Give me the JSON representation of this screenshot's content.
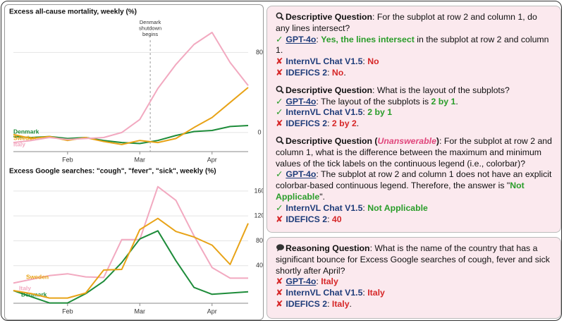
{
  "chart_data": [
    {
      "type": "line",
      "title": "Excess all-cause mortality, weekly (%)",
      "categories": [
        null,
        null,
        null,
        "Feb",
        null,
        null,
        null,
        "Mar",
        null,
        null,
        null,
        "Apr",
        null,
        null
      ],
      "series": [
        {
          "name": "Denmark",
          "color": "#1e8c3a",
          "values": [
            -4,
            -5,
            -4,
            -6,
            -5,
            -8,
            -10,
            -11,
            -8,
            -3,
            1,
            2,
            6,
            7
          ]
        },
        {
          "name": "Sweden",
          "color": "#e8a317",
          "values": [
            -2,
            -6,
            -4,
            -8,
            -5,
            -9,
            -12,
            -8,
            -10,
            -6,
            5,
            15,
            30,
            45
          ]
        },
        {
          "name": "Italy",
          "color": "#f2a9c0",
          "values": [
            -10,
            -8,
            -5,
            -7,
            -6,
            -5,
            0,
            13,
            44,
            68,
            88,
            100,
            70,
            47
          ]
        }
      ],
      "ylim": [
        -17,
        112
      ],
      "yticks": [
        0,
        80
      ],
      "grid": true,
      "annotation": [
        "Denmark",
        "shutdown",
        "begins"
      ]
    },
    {
      "type": "line",
      "title": "Excess Google searches: \"cough\", \"fever\", \"sick\", weekly (%)",
      "categories": [
        null,
        null,
        null,
        "Feb",
        null,
        null,
        null,
        "Mar",
        null,
        null,
        null,
        "Apr",
        null,
        null
      ],
      "series": [
        {
          "name": "Italy",
          "color": "#f2a9c0",
          "values": [
            12,
            18,
            24,
            27,
            22,
            21,
            82,
            82,
            167,
            145,
            88,
            37,
            20,
            20
          ]
        },
        {
          "name": "Denmark",
          "color": "#1e8c3a",
          "values": [
            0,
            -10,
            -20,
            -20,
            -5,
            15,
            45,
            83,
            96,
            48,
            5,
            -6,
            -4,
            -2
          ]
        },
        {
          "name": "Sweden",
          "color": "#e8a317",
          "values": [
            0,
            -5,
            -12,
            -12,
            -4,
            33,
            34,
            98,
            116,
            95,
            86,
            73,
            42,
            108
          ]
        }
      ],
      "ylim": [
        -17,
        178
      ],
      "yticks": [
        40,
        80,
        120,
        160
      ],
      "grid": true
    }
  ],
  "panels": [
    {
      "icon": "search",
      "items": [
        {
          "question": [
            {
              "text": "Descriptive Question",
              "bold": true
            },
            {
              "text": ": For the subplot at row 2 and column 1, do any lines intersect?"
            }
          ],
          "answers": [
            {
              "verdict": "✓",
              "model": "GPT-4o",
              "underline": true,
              "answer": [
                {
                  "text": ": "
                },
                {
                  "text": "Yes, the lines intersect",
                  "color": "#2a9d2a"
                },
                {
                  "text": " in the subplot at row 2 and column 1."
                }
              ]
            },
            {
              "verdict": "✘",
              "model": "InternVL Chat V1.5",
              "answer": [
                {
                  "text": ": "
                },
                {
                  "text": "No",
                  "color": "#d62728"
                }
              ]
            },
            {
              "verdict": "✘",
              "model": "IDEFICS 2",
              "answer": [
                {
                  "text": ": "
                },
                {
                  "text": "No",
                  "color": "#d62728"
                },
                {
                  "text": "."
                }
              ]
            }
          ]
        },
        {
          "question": [
            {
              "text": "Descriptive Question",
              "bold": true
            },
            {
              "text": ": What is the layout of the subplots?"
            }
          ],
          "answers": [
            {
              "verdict": "✓",
              "model": "GPT-4o",
              "underline": true,
              "answer": [
                {
                  "text": ": The layout of the subplots is "
                },
                {
                  "text": "2 by 1",
                  "color": "#2a9d2a"
                },
                {
                  "text": "."
                }
              ]
            },
            {
              "verdict": "✓",
              "model": "InternVL Chat V1.5",
              "answer": [
                {
                  "text": ": "
                },
                {
                  "text": "2 by 1",
                  "color": "#2a9d2a"
                }
              ]
            },
            {
              "verdict": "✘",
              "model": "IDEFICS 2",
              "answer": [
                {
                  "text": ": "
                },
                {
                  "text": "2 by 2",
                  "color": "#d62728"
                },
                {
                  "text": "."
                }
              ]
            }
          ]
        },
        {
          "question": [
            {
              "text": "Descriptive Question (",
              "bold": true
            },
            {
              "text": "Unanswerable",
              "bold": true,
              "italic": true,
              "color": "#e0457b"
            },
            {
              "text": ")",
              "bold": true
            },
            {
              "text": ": For the subplot at row 2 and column 1, what is the difference between the maximum and minimum values of the tick labels on the continuous legend (i.e., colorbar)?"
            }
          ],
          "answers": [
            {
              "verdict": "✓",
              "model": "GPT-4o",
              "underline": true,
              "answer": [
                {
                  "text": ": The subplot at row 2 and column 1 does not have an explicit colorbar-based continuous legend. Therefore, the answer is \""
                },
                {
                  "text": "Not Applicable",
                  "color": "#2a9d2a"
                },
                {
                  "text": "\"."
                }
              ]
            },
            {
              "verdict": "✓",
              "model": "InternVL Chat V1.5",
              "answer": [
                {
                  "text": ": "
                },
                {
                  "text": "Not Applicable",
                  "color": "#2a9d2a"
                }
              ]
            },
            {
              "verdict": "✘",
              "model": "IDEFICS 2",
              "answer": [
                {
                  "text": ": "
                },
                {
                  "text": "40",
                  "color": "#d62728"
                }
              ]
            }
          ]
        }
      ]
    },
    {
      "icon": "bubble",
      "items": [
        {
          "question": [
            {
              "text": "Reasoning Question",
              "bold": true
            },
            {
              "text": ": What is the name of the country that has a significant bounce for Excess Google searches of cough, fever and sick shortly after April?"
            }
          ],
          "answers": [
            {
              "verdict": "✘",
              "model": "GPT-4o",
              "underline": true,
              "answer": [
                {
                  "text": ": "
                },
                {
                  "text": "Italy",
                  "color": "#d62728"
                }
              ]
            },
            {
              "verdict": "✘",
              "model": "InternVL Chat V1.5",
              "answer": [
                {
                  "text": ": "
                },
                {
                  "text": "Italy",
                  "color": "#d62728"
                }
              ]
            },
            {
              "verdict": "✘",
              "model": "IDEFICS 2",
              "answer": [
                {
                  "text": ": "
                },
                {
                  "text": "Italy",
                  "color": "#d62728"
                },
                {
                  "text": "."
                }
              ]
            }
          ]
        }
      ]
    }
  ]
}
